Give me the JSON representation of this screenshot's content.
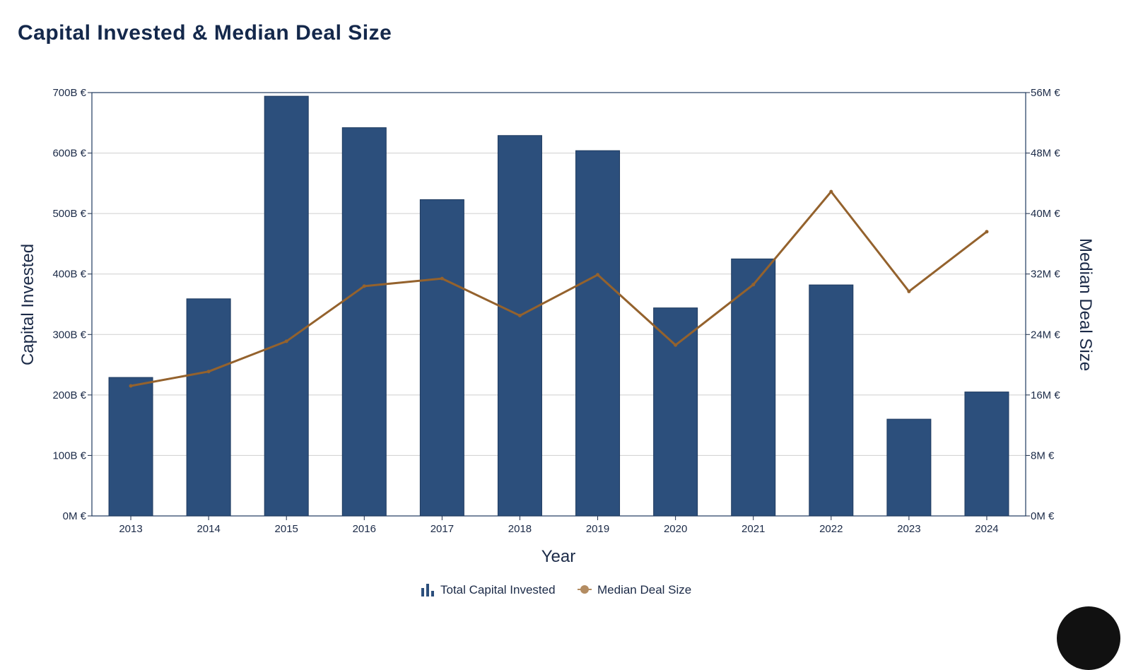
{
  "page": {
    "title": "Capital Invested & Median Deal Size"
  },
  "chart_data": {
    "type": "bar",
    "title": "Capital Invested & Median Deal Size",
    "xlabel": "Year",
    "ylabel": "Capital Invested",
    "y2label": "Median Deal Size",
    "categories": [
      "2013",
      "2014",
      "2015",
      "2016",
      "2017",
      "2018",
      "2019",
      "2020",
      "2021",
      "2022",
      "2023",
      "2024"
    ],
    "series": [
      {
        "name": "Total Capital Invested",
        "type": "bar",
        "axis": "left",
        "unit": "B €",
        "color": "#2c4f7c",
        "values": [
          229,
          359,
          694,
          642,
          523,
          629,
          604,
          344,
          425,
          382,
          160,
          205
        ]
      },
      {
        "name": "Median Deal Size",
        "type": "line",
        "axis": "right",
        "unit": "M €",
        "color": "#94622d",
        "values": [
          17.2,
          19.1,
          23.1,
          30.4,
          31.4,
          26.5,
          31.9,
          22.6,
          30.6,
          42.9,
          29.7,
          37.6
        ]
      }
    ],
    "ylim": [
      0,
      700
    ],
    "y2lim": [
      0,
      56
    ],
    "y_ticks": [
      "0M €",
      "100B €",
      "200B €",
      "300B €",
      "400B €",
      "500B €",
      "600B €",
      "700B €"
    ],
    "y2_ticks": [
      "0M €",
      "8M €",
      "16M €",
      "24M €",
      "32M €",
      "40M €",
      "48M €",
      "56M €"
    ],
    "grid": true,
    "legend_position": "bottom-center"
  }
}
